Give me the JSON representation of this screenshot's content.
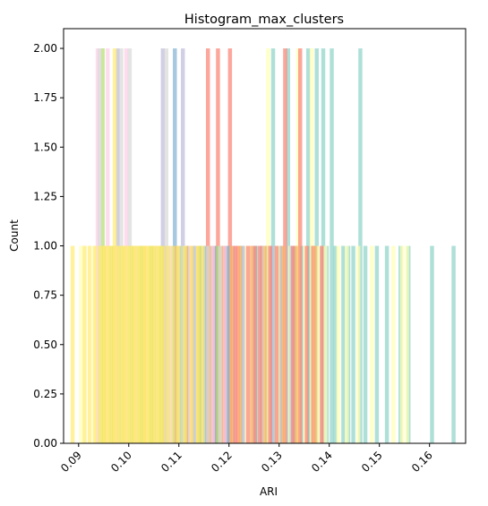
{
  "chart_data": {
    "type": "bar",
    "title": "Histogram_max_clusters",
    "xlabel": "ARI",
    "ylabel": "Count",
    "xlim": [
      0.087,
      0.1672
    ],
    "ylim": [
      0,
      2.1
    ],
    "xticks": [
      0.09,
      0.1,
      0.11,
      0.12,
      0.13,
      0.14,
      0.15,
      0.16
    ],
    "xtick_labels": [
      "0.09",
      "0.10",
      "0.11",
      "0.12",
      "0.13",
      "0.14",
      "0.15",
      "0.16"
    ],
    "yticks": [
      0,
      0.25,
      0.5,
      0.75,
      1.0,
      1.25,
      1.5,
      1.75,
      2.0
    ],
    "ytick_labels": [
      "0.00",
      "0.25",
      "0.50",
      "0.75",
      "1.00",
      "1.25",
      "1.50",
      "1.75",
      "2.00"
    ],
    "grid": false,
    "bar_width": 0.0008,
    "series": [
      {
        "color": "#8dd3c7",
        "opacity": 0.7,
        "bars": [
          [
            0.1165,
            1
          ],
          [
            0.1195,
            1
          ],
          [
            0.1225,
            1
          ],
          [
            0.1255,
            1
          ],
          [
            0.1275,
            1
          ],
          [
            0.1288,
            2
          ],
          [
            0.1302,
            1
          ],
          [
            0.1318,
            2
          ],
          [
            0.1332,
            1
          ],
          [
            0.1345,
            1
          ],
          [
            0.1358,
            2
          ],
          [
            0.1362,
            1
          ],
          [
            0.1375,
            2
          ],
          [
            0.1388,
            2
          ],
          [
            0.1395,
            1
          ],
          [
            0.1405,
            2
          ],
          [
            0.1412,
            1
          ],
          [
            0.1428,
            1
          ],
          [
            0.1438,
            1
          ],
          [
            0.1448,
            1
          ],
          [
            0.1462,
            2
          ],
          [
            0.1472,
            1
          ],
          [
            0.1495,
            1
          ],
          [
            0.1515,
            1
          ],
          [
            0.1542,
            1
          ],
          [
            0.1558,
            1
          ],
          [
            0.1605,
            1
          ],
          [
            0.1648,
            1
          ]
        ]
      },
      {
        "color": "#ffffb3",
        "opacity": 0.7,
        "bars": [
          [
            0.0905,
            1
          ],
          [
            0.0935,
            1
          ],
          [
            0.0985,
            1
          ],
          [
            0.1035,
            1
          ],
          [
            0.1085,
            1
          ],
          [
            0.1135,
            1
          ],
          [
            0.1182,
            1
          ],
          [
            0.1232,
            1
          ],
          [
            0.1268,
            1
          ],
          [
            0.1278,
            2
          ],
          [
            0.1298,
            1
          ],
          [
            0.1322,
            1
          ],
          [
            0.1338,
            2
          ],
          [
            0.1352,
            1
          ],
          [
            0.1365,
            2
          ],
          [
            0.1378,
            1
          ],
          [
            0.1392,
            1
          ],
          [
            0.1418,
            1
          ],
          [
            0.1435,
            1
          ],
          [
            0.1458,
            1
          ],
          [
            0.1485,
            1
          ],
          [
            0.1528,
            1
          ],
          [
            0.1545,
            1
          ],
          [
            0.1555,
            1
          ]
        ]
      },
      {
        "color": "#bebada",
        "opacity": 0.7,
        "bars": [
          [
            0.0945,
            1
          ],
          [
            0.0968,
            1
          ],
          [
            0.0978,
            2
          ],
          [
            0.1008,
            1
          ],
          [
            0.1028,
            1
          ],
          [
            0.1048,
            1
          ],
          [
            0.1068,
            2
          ],
          [
            0.1088,
            1
          ],
          [
            0.1108,
            2
          ],
          [
            0.1128,
            1
          ],
          [
            0.1148,
            1
          ],
          [
            0.1168,
            1
          ],
          [
            0.1188,
            1
          ],
          [
            0.1208,
            1
          ],
          [
            0.1228,
            1
          ],
          [
            0.1248,
            1
          ],
          [
            0.1265,
            1
          ],
          [
            0.1285,
            1
          ],
          [
            0.1305,
            1
          ],
          [
            0.1325,
            1
          ]
        ]
      },
      {
        "color": "#fb8072",
        "opacity": 0.7,
        "bars": [
          [
            0.1125,
            1
          ],
          [
            0.1142,
            1
          ],
          [
            0.1158,
            2
          ],
          [
            0.1172,
            1
          ],
          [
            0.1178,
            2
          ],
          [
            0.1192,
            1
          ],
          [
            0.1202,
            2
          ],
          [
            0.1212,
            1
          ],
          [
            0.1218,
            1
          ],
          [
            0.1238,
            1
          ],
          [
            0.1252,
            1
          ],
          [
            0.1262,
            1
          ],
          [
            0.1282,
            1
          ],
          [
            0.1295,
            1
          ],
          [
            0.1312,
            2
          ],
          [
            0.1328,
            1
          ],
          [
            0.1342,
            2
          ],
          [
            0.1355,
            1
          ],
          [
            0.1368,
            1
          ],
          [
            0.1385,
            1
          ]
        ]
      },
      {
        "color": "#80b1d3",
        "opacity": 0.7,
        "bars": [
          [
            0.0962,
            1
          ],
          [
            0.0982,
            1
          ],
          [
            0.1002,
            1
          ],
          [
            0.1022,
            1
          ],
          [
            0.1042,
            1
          ],
          [
            0.1062,
            1
          ],
          [
            0.1078,
            1
          ],
          [
            0.1092,
            2
          ],
          [
            0.1098,
            1
          ],
          [
            0.1112,
            1
          ],
          [
            0.1118,
            1
          ],
          [
            0.1132,
            1
          ],
          [
            0.1152,
            1
          ],
          [
            0.1175,
            1
          ],
          [
            0.1198,
            1
          ]
        ]
      },
      {
        "color": "#fdb462",
        "opacity": 0.7,
        "bars": [
          [
            0.0952,
            1
          ],
          [
            0.0972,
            1
          ],
          [
            0.0992,
            1
          ],
          [
            0.1012,
            1
          ],
          [
            0.1032,
            1
          ],
          [
            0.1052,
            1
          ],
          [
            0.1072,
            1
          ],
          [
            0.1095,
            1
          ],
          [
            0.1115,
            1
          ],
          [
            0.1138,
            1
          ],
          [
            0.1162,
            1
          ],
          [
            0.1185,
            1
          ],
          [
            0.1205,
            1
          ],
          [
            0.1222,
            1
          ],
          [
            0.1245,
            1
          ],
          [
            0.1272,
            1
          ],
          [
            0.1308,
            1
          ],
          [
            0.1335,
            1
          ],
          [
            0.1372,
            1
          ]
        ]
      },
      {
        "color": "#fccde5",
        "opacity": 0.7,
        "bars": [
          [
            0.0938,
            2
          ],
          [
            0.0958,
            2
          ],
          [
            0.0975,
            1
          ],
          [
            0.0995,
            2
          ],
          [
            0.1015,
            1
          ],
          [
            0.1038,
            1
          ],
          [
            0.1058,
            1
          ],
          [
            0.1082,
            1
          ],
          [
            0.1102,
            1
          ],
          [
            0.1122,
            1
          ],
          [
            0.1145,
            1
          ],
          [
            0.1168,
            1
          ],
          [
            0.1192,
            1
          ]
        ]
      },
      {
        "color": "#b3de69",
        "opacity": 0.7,
        "bars": [
          [
            0.0948,
            2
          ],
          [
            0.0965,
            1
          ],
          [
            0.0988,
            1
          ],
          [
            0.1005,
            1
          ],
          [
            0.1025,
            1
          ],
          [
            0.1045,
            1
          ],
          [
            0.1065,
            1
          ],
          [
            0.1105,
            1
          ],
          [
            0.1142,
            1
          ],
          [
            0.1178,
            1
          ]
        ]
      },
      {
        "color": "#d9d9d9",
        "opacity": 0.7,
        "bars": [
          [
            0.0942,
            2
          ],
          [
            0.0962,
            1
          ],
          [
            0.0985,
            2
          ],
          [
            0.1002,
            2
          ],
          [
            0.1018,
            1
          ],
          [
            0.1055,
            1
          ],
          [
            0.1075,
            2
          ],
          [
            0.1108,
            1
          ],
          [
            0.1132,
            1
          ],
          [
            0.1158,
            1
          ],
          [
            0.1182,
            1
          ]
        ]
      },
      {
        "color": "#ffed6f",
        "opacity": 0.7,
        "bars": [
          [
            0.0888,
            1
          ],
          [
            0.0912,
            1
          ],
          [
            0.0922,
            1
          ],
          [
            0.0932,
            1
          ],
          [
            0.0942,
            1
          ],
          [
            0.0948,
            1
          ],
          [
            0.0952,
            1
          ],
          [
            0.0958,
            1
          ],
          [
            0.0962,
            1
          ],
          [
            0.0968,
            1
          ],
          [
            0.0972,
            2
          ],
          [
            0.0978,
            1
          ],
          [
            0.0982,
            1
          ],
          [
            0.0988,
            1
          ],
          [
            0.0992,
            1
          ],
          [
            0.0998,
            1
          ],
          [
            0.1002,
            1
          ],
          [
            0.1008,
            1
          ],
          [
            0.1012,
            1
          ],
          [
            0.1018,
            1
          ],
          [
            0.1022,
            1
          ],
          [
            0.1028,
            1
          ],
          [
            0.1032,
            1
          ],
          [
            0.1038,
            1
          ],
          [
            0.1042,
            1
          ],
          [
            0.1048,
            1
          ],
          [
            0.1052,
            1
          ],
          [
            0.1058,
            1
          ],
          [
            0.1062,
            1
          ],
          [
            0.1068,
            1
          ],
          [
            0.1078,
            1
          ],
          [
            0.1088,
            1
          ],
          [
            0.1098,
            1
          ],
          [
            0.1112,
            1
          ],
          [
            0.1125,
            1
          ],
          [
            0.1138,
            1
          ],
          [
            0.1148,
            1
          ]
        ]
      }
    ]
  }
}
